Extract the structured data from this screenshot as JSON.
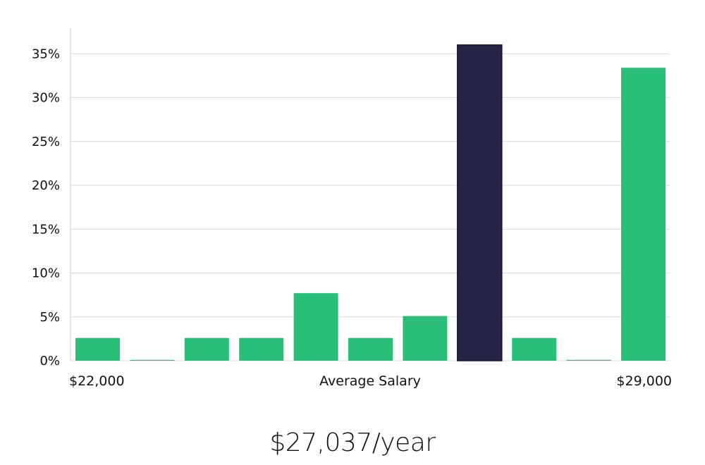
{
  "chart_data": {
    "type": "bar",
    "title": "",
    "xlabel": "Average Salary",
    "ylabel": "",
    "x_min_label": "$22,000",
    "x_max_label": "$29,000",
    "ylim": [
      0,
      37
    ],
    "yticks": [
      0,
      5,
      10,
      15,
      20,
      25,
      30,
      35
    ],
    "ytick_labels": [
      "0%",
      "5%",
      "10%",
      "15%",
      "20%",
      "25%",
      "30%",
      "35%"
    ],
    "values": [
      2.6,
      0,
      2.6,
      2.6,
      7.7,
      2.6,
      5.1,
      36,
      2.6,
      0,
      33.4
    ],
    "highlight_index": 7,
    "colors": {
      "bar": "#2abf78",
      "highlight": "#272546",
      "grid": "#d9d9d9"
    }
  },
  "summary": {
    "salary_text": "$27,037/year"
  }
}
